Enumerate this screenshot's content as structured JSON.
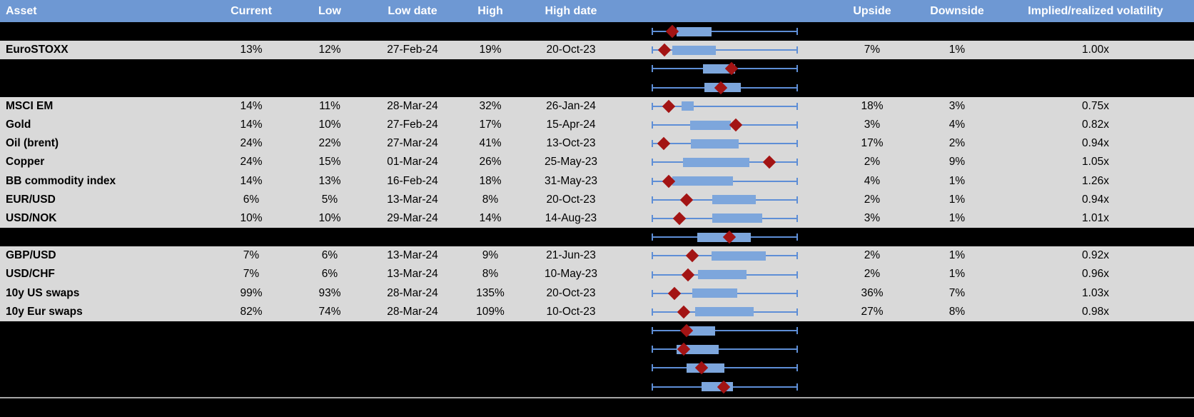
{
  "colors": {
    "header_bg": "#6E98D3",
    "header_text": "#FFFFFF",
    "data_row_bg": "#D9D9D9",
    "spacer_row_bg": "#000000",
    "cell_text": "#000000",
    "whisker_line": "#5E8ED6",
    "range_box_fill": "#7DA6DC",
    "current_marker": "#A31414",
    "bottom_divider": "#A6A6A6"
  },
  "chart_data": {
    "type": "table",
    "title": "",
    "columns": [
      "Asset",
      "Current",
      "Low",
      "Low date",
      "High",
      "High date",
      "Upside",
      "Downside",
      "Implied/realized volatility"
    ],
    "range_chart_encoding": "each row: whisker spans low-to-high (0 to 1); box_start/box_end and marker are fractions of that span; red diamond = current level",
    "rows": [
      {
        "range": {
          "box_start": 0.17,
          "box_end": 0.41,
          "marker": 0.14
        }
      },
      {
        "asset": "EuroSTOXX",
        "current": "13%",
        "low": "12%",
        "low_date": "27-Feb-24",
        "high": "19%",
        "high_date": "20-Oct-23",
        "upside": "7%",
        "downside": "1%",
        "implied_realized": "1.00x",
        "range": {
          "box_start": 0.14,
          "box_end": 0.44,
          "marker": 0.09
        }
      },
      {
        "range": {
          "box_start": 0.35,
          "box_end": 0.57,
          "marker": 0.545
        }
      },
      {
        "range": {
          "box_start": 0.36,
          "box_end": 0.61,
          "marker": 0.475
        }
      },
      {
        "asset": "MSCI EM",
        "current": "14%",
        "low": "11%",
        "low_date": "28-Mar-24",
        "high": "32%",
        "high_date": "26-Jan-24",
        "upside": "18%",
        "downside": "3%",
        "implied_realized": "0.75x",
        "range": {
          "box_start": 0.205,
          "box_end": 0.29,
          "marker": 0.115
        }
      },
      {
        "asset": "Gold",
        "current": "14%",
        "low": "10%",
        "low_date": "27-Feb-24",
        "high": "17%",
        "high_date": "15-Apr-24",
        "upside": "3%",
        "downside": "4%",
        "implied_realized": "0.82x",
        "range": {
          "box_start": 0.265,
          "box_end": 0.54,
          "marker": 0.575
        }
      },
      {
        "asset": "Oil (brent)",
        "current": "24%",
        "low": "22%",
        "low_date": "27-Mar-24",
        "high": "41%",
        "high_date": "13-Oct-23",
        "upside": "17%",
        "downside": "2%",
        "implied_realized": "0.94x",
        "range": {
          "box_start": 0.27,
          "box_end": 0.595,
          "marker": 0.085
        }
      },
      {
        "asset": "Copper",
        "current": "24%",
        "low": "15%",
        "low_date": "01-Mar-24",
        "high": "26%",
        "high_date": "25-May-23",
        "upside": "2%",
        "downside": "9%",
        "implied_realized": "1.05x",
        "range": {
          "box_start": 0.215,
          "box_end": 0.67,
          "marker": 0.805
        }
      },
      {
        "asset": "BB commodity index",
        "current": "14%",
        "low": "13%",
        "low_date": "16-Feb-24",
        "high": "18%",
        "high_date": "31-May-23",
        "upside": "4%",
        "downside": "1%",
        "implied_realized": "1.26x",
        "range": {
          "box_start": 0.14,
          "box_end": 0.555,
          "marker": 0.115
        }
      },
      {
        "asset": "EUR/USD",
        "current": "6%",
        "low": "5%",
        "low_date": "13-Mar-24",
        "high": "8%",
        "high_date": "20-Oct-23",
        "upside": "2%",
        "downside": "1%",
        "implied_realized": "0.94x",
        "range": {
          "box_start": 0.415,
          "box_end": 0.71,
          "marker": 0.24
        }
      },
      {
        "asset": "USD/NOK",
        "current": "10%",
        "low": "10%",
        "low_date": "29-Mar-24",
        "high": "14%",
        "high_date": "14-Aug-23",
        "upside": "3%",
        "downside": "1%",
        "implied_realized": "1.01x",
        "range": {
          "box_start": 0.415,
          "box_end": 0.755,
          "marker": 0.19
        }
      },
      {
        "range": {
          "box_start": 0.31,
          "box_end": 0.68,
          "marker": 0.53
        }
      },
      {
        "asset": "GBP/USD",
        "current": "7%",
        "low": "6%",
        "low_date": "13-Mar-24",
        "high": "9%",
        "high_date": "21-Jun-23",
        "upside": "2%",
        "downside": "1%",
        "implied_realized": "0.92x",
        "range": {
          "box_start": 0.41,
          "box_end": 0.78,
          "marker": 0.28
        }
      },
      {
        "asset": "USD/CHF",
        "current": "7%",
        "low": "6%",
        "low_date": "13-Mar-24",
        "high": "8%",
        "high_date": "10-May-23",
        "upside": "2%",
        "downside": "1%",
        "implied_realized": "0.96x",
        "range": {
          "box_start": 0.315,
          "box_end": 0.65,
          "marker": 0.25
        }
      },
      {
        "asset": "10y US swaps",
        "current": "99%",
        "low": "93%",
        "low_date": "28-Mar-24",
        "high": "135%",
        "high_date": "20-Oct-23",
        "upside": "36%",
        "downside": "7%",
        "implied_realized": "1.03x",
        "range": {
          "box_start": 0.28,
          "box_end": 0.585,
          "marker": 0.155
        }
      },
      {
        "asset": "10y Eur swaps",
        "current": "82%",
        "low": "74%",
        "low_date": "28-Mar-24",
        "high": "109%",
        "high_date": "10-Oct-23",
        "upside": "27%",
        "downside": "8%",
        "implied_realized": "0.98x",
        "range": {
          "box_start": 0.295,
          "box_end": 0.695,
          "marker": 0.22
        }
      },
      {
        "range": {
          "box_start": 0.23,
          "box_end": 0.435,
          "marker": 0.24
        }
      },
      {
        "range": {
          "box_start": 0.17,
          "box_end": 0.46,
          "marker": 0.22
        }
      },
      {
        "range": {
          "box_start": 0.24,
          "box_end": 0.5,
          "marker": 0.34
        }
      },
      {
        "range": {
          "box_start": 0.34,
          "box_end": 0.555,
          "marker": 0.49
        }
      }
    ]
  }
}
